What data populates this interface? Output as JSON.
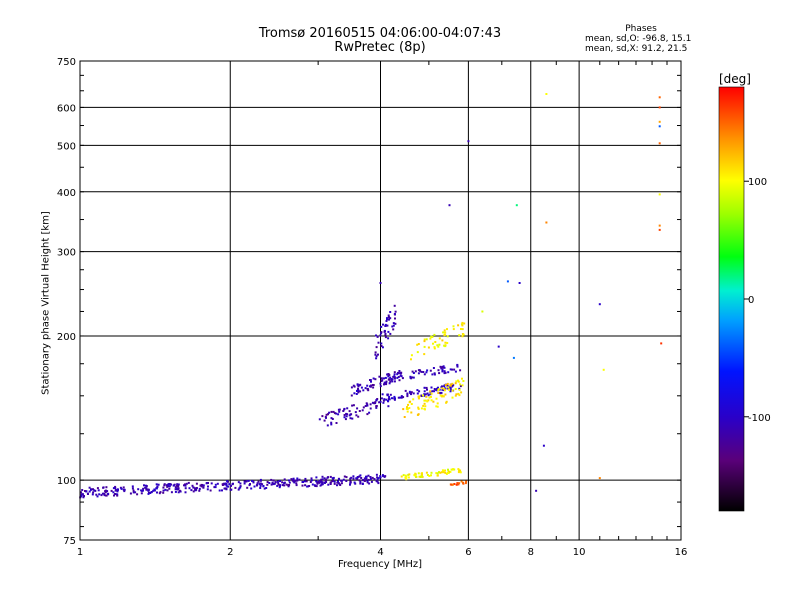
{
  "header": {
    "title": "Tromsø 20160515 04:06:00-04:07:43",
    "subtitle": "RwPretec (8p)"
  },
  "phases_box": {
    "title": "Phases",
    "line_o": "mean, sd,O: -96.8, 15.1",
    "line_x": "mean, sd,X:  91.2, 21.5"
  },
  "colorbar": {
    "label": "[deg]",
    "range": [
      -180,
      180
    ],
    "ticks": [
      100,
      0,
      -100
    ]
  },
  "chart_data": {
    "type": "scatter",
    "xlabel": "Frequency [MHz]",
    "ylabel": "Stationary phase Virtual Height [km]",
    "x_scale": "log",
    "y_scale": "log",
    "xlim": [
      1,
      16
    ],
    "ylim": [
      75,
      750
    ],
    "x_ticks": [
      1,
      2,
      4,
      6,
      8,
      10,
      16
    ],
    "y_ticks": [
      75,
      100,
      200,
      300,
      400,
      500,
      600,
      750
    ],
    "grid": true,
    "traces": [
      {
        "x_range": [
          1.0,
          4.1
        ],
        "h_range": [
          92,
          103
        ],
        "phase": -110,
        "count": 420
      },
      {
        "x_range": [
          3.0,
          4.15
        ],
        "h_range": [
          128,
          150
        ],
        "phase": -115,
        "count": 70
      },
      {
        "x_range": [
          3.5,
          4.4
        ],
        "h_range": [
          150,
          170
        ],
        "phase": -110,
        "count": 70
      },
      {
        "x_range": [
          3.9,
          4.3
        ],
        "h_range": [
          175,
          235
        ],
        "phase": -110,
        "count": 50
      },
      {
        "x_range": [
          4.0,
          5.8
        ],
        "h_range": [
          145,
          160
        ],
        "phase": -105,
        "count": 90
      },
      {
        "x_range": [
          4.1,
          5.8
        ],
        "h_range": [
          160,
          175
        ],
        "phase": -110,
        "count": 60
      },
      {
        "x_range": [
          4.4,
          5.8
        ],
        "h_range": [
          100,
          106
        ],
        "phase": 100,
        "count": 60
      },
      {
        "x_range": [
          4.4,
          5.9
        ],
        "h_range": [
          130,
          165
        ],
        "phase": 110,
        "count": 80
      },
      {
        "x_range": [
          4.6,
          5.9
        ],
        "h_range": [
          175,
          215
        ],
        "phase": 105,
        "count": 50
      },
      {
        "x_range": [
          5.5,
          6.0
        ],
        "h_range": [
          97,
          100
        ],
        "phase": 150,
        "count": 15
      }
    ],
    "points": [
      {
        "x": 4.0,
        "h": 258,
        "phase": -110
      },
      {
        "x": 5.5,
        "h": 375,
        "phase": -110
      },
      {
        "x": 6.0,
        "h": 510,
        "phase": -110
      },
      {
        "x": 6.4,
        "h": 225,
        "phase": 90
      },
      {
        "x": 6.9,
        "h": 190,
        "phase": -100
      },
      {
        "x": 7.2,
        "h": 260,
        "phase": -40
      },
      {
        "x": 7.4,
        "h": 180,
        "phase": -30
      },
      {
        "x": 7.5,
        "h": 375,
        "phase": 20
      },
      {
        "x": 7.6,
        "h": 258,
        "phase": -100
      },
      {
        "x": 8.2,
        "h": 95,
        "phase": -110
      },
      {
        "x": 8.5,
        "h": 118,
        "phase": -100
      },
      {
        "x": 8.6,
        "h": 345,
        "phase": 140
      },
      {
        "x": 8.6,
        "h": 640,
        "phase": 100
      },
      {
        "x": 11.0,
        "h": 233,
        "phase": -100
      },
      {
        "x": 11.0,
        "h": 101,
        "phase": 140
      },
      {
        "x": 11.2,
        "h": 170,
        "phase": 100
      },
      {
        "x": 14.5,
        "h": 630,
        "phase": 150
      },
      {
        "x": 14.5,
        "h": 600,
        "phase": 160
      },
      {
        "x": 14.5,
        "h": 560,
        "phase": 130
      },
      {
        "x": 14.5,
        "h": 548,
        "phase": -40
      },
      {
        "x": 14.5,
        "h": 505,
        "phase": 150
      },
      {
        "x": 14.5,
        "h": 395,
        "phase": 100
      },
      {
        "x": 14.5,
        "h": 340,
        "phase": 140
      },
      {
        "x": 14.5,
        "h": 333,
        "phase": 160
      },
      {
        "x": 14.6,
        "h": 193,
        "phase": 165
      }
    ]
  }
}
